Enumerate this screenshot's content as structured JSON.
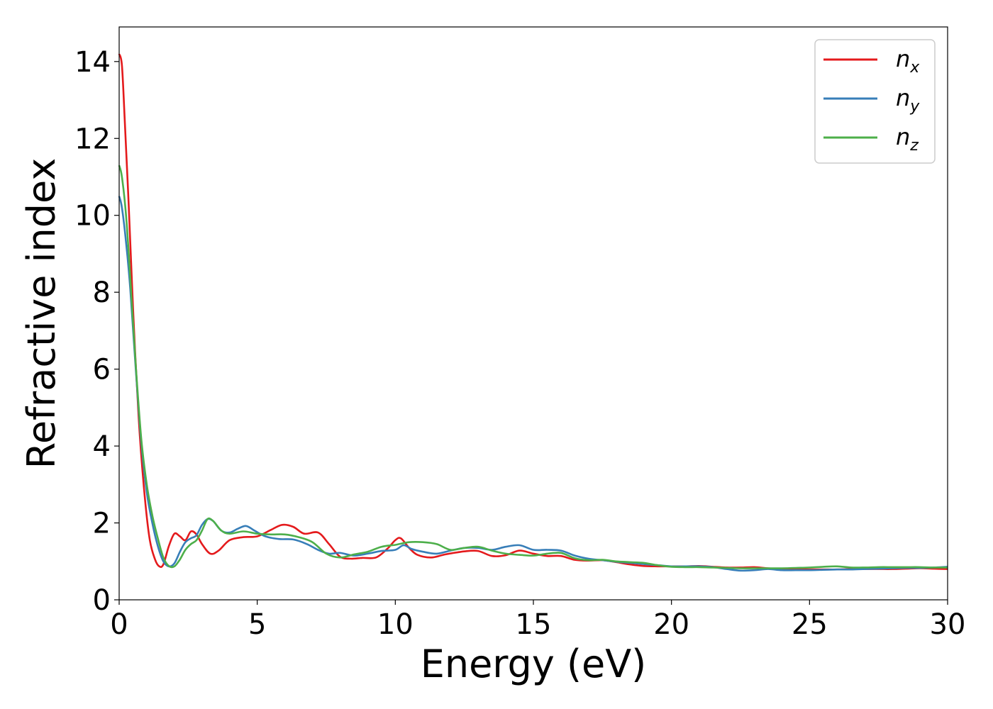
{
  "chart_data": {
    "type": "line",
    "title": "",
    "xlabel": "Energy (eV)",
    "ylabel": "Refractive index",
    "xlim": [
      0,
      30
    ],
    "ylim": [
      0,
      14.9
    ],
    "xticks": [
      0,
      5,
      10,
      15,
      20,
      25,
      30
    ],
    "yticks": [
      0,
      2,
      4,
      6,
      8,
      10,
      12,
      14
    ],
    "grid": false,
    "legend_position": "top-right",
    "series": [
      {
        "name": "n_x",
        "legend_main": "n",
        "legend_sub": "x",
        "color": "#e41a1c",
        "points": [
          [
            0,
            14.2
          ],
          [
            0.1,
            13.9
          ],
          [
            0.2,
            12.5
          ],
          [
            0.35,
            10.2
          ],
          [
            0.5,
            7.6
          ],
          [
            0.7,
            4.8
          ],
          [
            0.9,
            2.9
          ],
          [
            1.1,
            1.6
          ],
          [
            1.3,
            1.05
          ],
          [
            1.45,
            0.87
          ],
          [
            1.6,
            0.92
          ],
          [
            1.8,
            1.4
          ],
          [
            2.0,
            1.72
          ],
          [
            2.2,
            1.65
          ],
          [
            2.4,
            1.55
          ],
          [
            2.6,
            1.78
          ],
          [
            2.8,
            1.7
          ],
          [
            3.0,
            1.45
          ],
          [
            3.3,
            1.2
          ],
          [
            3.6,
            1.28
          ],
          [
            4.0,
            1.55
          ],
          [
            4.5,
            1.63
          ],
          [
            5.0,
            1.65
          ],
          [
            5.5,
            1.82
          ],
          [
            5.9,
            1.95
          ],
          [
            6.3,
            1.9
          ],
          [
            6.7,
            1.72
          ],
          [
            7.2,
            1.75
          ],
          [
            7.6,
            1.45
          ],
          [
            8.0,
            1.12
          ],
          [
            8.4,
            1.07
          ],
          [
            8.8,
            1.09
          ],
          [
            9.3,
            1.1
          ],
          [
            9.7,
            1.32
          ],
          [
            10.0,
            1.55
          ],
          [
            10.2,
            1.6
          ],
          [
            10.5,
            1.35
          ],
          [
            10.8,
            1.17
          ],
          [
            11.3,
            1.1
          ],
          [
            11.8,
            1.18
          ],
          [
            12.5,
            1.26
          ],
          [
            13.0,
            1.27
          ],
          [
            13.5,
            1.14
          ],
          [
            14.0,
            1.16
          ],
          [
            14.5,
            1.28
          ],
          [
            15.0,
            1.2
          ],
          [
            15.5,
            1.14
          ],
          [
            16.0,
            1.14
          ],
          [
            16.5,
            1.04
          ],
          [
            17.0,
            1.02
          ],
          [
            17.5,
            1.03
          ],
          [
            18.0,
            0.98
          ],
          [
            18.5,
            0.92
          ],
          [
            19.0,
            0.88
          ],
          [
            19.5,
            0.87
          ],
          [
            20.0,
            0.87
          ],
          [
            20.5,
            0.87
          ],
          [
            21.0,
            0.88
          ],
          [
            21.5,
            0.86
          ],
          [
            22.0,
            0.84
          ],
          [
            22.5,
            0.84
          ],
          [
            23.0,
            0.85
          ],
          [
            23.5,
            0.82
          ],
          [
            24.0,
            0.8
          ],
          [
            24.5,
            0.79
          ],
          [
            25.0,
            0.79
          ],
          [
            25.5,
            0.79
          ],
          [
            26.0,
            0.79
          ],
          [
            26.5,
            0.8
          ],
          [
            27.0,
            0.8
          ],
          [
            27.5,
            0.8
          ],
          [
            28.0,
            0.8
          ],
          [
            28.5,
            0.81
          ],
          [
            29.0,
            0.82
          ],
          [
            29.5,
            0.81
          ],
          [
            30.0,
            0.8
          ]
        ]
      },
      {
        "name": "n_y",
        "legend_main": "n",
        "legend_sub": "y",
        "color": "#377eb8",
        "points": [
          [
            0,
            10.5
          ],
          [
            0.1,
            10.2
          ],
          [
            0.25,
            9.3
          ],
          [
            0.4,
            8.1
          ],
          [
            0.6,
            6.0
          ],
          [
            0.8,
            4.1
          ],
          [
            1.0,
            2.8
          ],
          [
            1.2,
            2.0
          ],
          [
            1.4,
            1.4
          ],
          [
            1.6,
            1.0
          ],
          [
            1.8,
            0.87
          ],
          [
            2.0,
            0.95
          ],
          [
            2.2,
            1.25
          ],
          [
            2.4,
            1.5
          ],
          [
            2.6,
            1.6
          ],
          [
            2.8,
            1.68
          ],
          [
            3.0,
            1.95
          ],
          [
            3.2,
            2.1
          ],
          [
            3.4,
            2.05
          ],
          [
            3.7,
            1.8
          ],
          [
            4.0,
            1.75
          ],
          [
            4.3,
            1.85
          ],
          [
            4.6,
            1.92
          ],
          [
            4.9,
            1.8
          ],
          [
            5.3,
            1.65
          ],
          [
            5.8,
            1.58
          ],
          [
            6.3,
            1.57
          ],
          [
            6.8,
            1.45
          ],
          [
            7.2,
            1.3
          ],
          [
            7.6,
            1.2
          ],
          [
            8.0,
            1.22
          ],
          [
            8.5,
            1.15
          ],
          [
            9.0,
            1.2
          ],
          [
            9.5,
            1.27
          ],
          [
            10.0,
            1.3
          ],
          [
            10.3,
            1.42
          ],
          [
            10.6,
            1.32
          ],
          [
            11.0,
            1.25
          ],
          [
            11.5,
            1.2
          ],
          [
            12.0,
            1.28
          ],
          [
            12.5,
            1.35
          ],
          [
            13.0,
            1.35
          ],
          [
            13.5,
            1.3
          ],
          [
            14.0,
            1.38
          ],
          [
            14.5,
            1.42
          ],
          [
            15.0,
            1.3
          ],
          [
            15.5,
            1.3
          ],
          [
            16.0,
            1.28
          ],
          [
            16.5,
            1.15
          ],
          [
            17.0,
            1.07
          ],
          [
            17.5,
            1.03
          ],
          [
            18.0,
            0.99
          ],
          [
            18.5,
            0.96
          ],
          [
            19.0,
            0.93
          ],
          [
            19.5,
            0.9
          ],
          [
            20.0,
            0.87
          ],
          [
            20.5,
            0.87
          ],
          [
            21.0,
            0.87
          ],
          [
            21.5,
            0.85
          ],
          [
            22.0,
            0.8
          ],
          [
            22.5,
            0.76
          ],
          [
            23.0,
            0.77
          ],
          [
            23.5,
            0.8
          ],
          [
            24.0,
            0.77
          ],
          [
            24.5,
            0.77
          ],
          [
            25.0,
            0.77
          ],
          [
            25.5,
            0.78
          ],
          [
            26.0,
            0.79
          ],
          [
            26.5,
            0.79
          ],
          [
            27.0,
            0.8
          ],
          [
            27.5,
            0.81
          ],
          [
            28.0,
            0.82
          ],
          [
            28.5,
            0.83
          ],
          [
            29.0,
            0.83
          ],
          [
            29.5,
            0.84
          ],
          [
            30.0,
            0.86
          ]
        ]
      },
      {
        "name": "n_z",
        "legend_main": "n",
        "legend_sub": "z",
        "color": "#4daf4a",
        "points": [
          [
            0,
            11.3
          ],
          [
            0.1,
            11.0
          ],
          [
            0.25,
            10.0
          ],
          [
            0.4,
            8.4
          ],
          [
            0.6,
            6.1
          ],
          [
            0.8,
            4.2
          ],
          [
            1.0,
            3.0
          ],
          [
            1.2,
            2.2
          ],
          [
            1.4,
            1.6
          ],
          [
            1.6,
            1.1
          ],
          [
            1.8,
            0.88
          ],
          [
            2.0,
            0.87
          ],
          [
            2.2,
            1.05
          ],
          [
            2.4,
            1.3
          ],
          [
            2.6,
            1.45
          ],
          [
            2.8,
            1.55
          ],
          [
            3.0,
            1.8
          ],
          [
            3.2,
            2.1
          ],
          [
            3.4,
            2.05
          ],
          [
            3.7,
            1.8
          ],
          [
            4.0,
            1.72
          ],
          [
            4.5,
            1.78
          ],
          [
            5.0,
            1.72
          ],
          [
            5.5,
            1.7
          ],
          [
            6.0,
            1.7
          ],
          [
            6.5,
            1.63
          ],
          [
            7.0,
            1.5
          ],
          [
            7.5,
            1.2
          ],
          [
            8.0,
            1.1
          ],
          [
            8.5,
            1.18
          ],
          [
            9.0,
            1.25
          ],
          [
            9.5,
            1.38
          ],
          [
            10.0,
            1.43
          ],
          [
            10.5,
            1.5
          ],
          [
            11.0,
            1.5
          ],
          [
            11.5,
            1.45
          ],
          [
            12.0,
            1.3
          ],
          [
            12.5,
            1.35
          ],
          [
            13.0,
            1.38
          ],
          [
            13.5,
            1.28
          ],
          [
            14.0,
            1.2
          ],
          [
            14.5,
            1.17
          ],
          [
            15.0,
            1.15
          ],
          [
            15.5,
            1.2
          ],
          [
            16.0,
            1.22
          ],
          [
            16.5,
            1.08
          ],
          [
            17.0,
            1.03
          ],
          [
            17.5,
            1.04
          ],
          [
            18.0,
            1.0
          ],
          [
            18.5,
            0.98
          ],
          [
            19.0,
            0.96
          ],
          [
            19.5,
            0.9
          ],
          [
            20.0,
            0.86
          ],
          [
            20.5,
            0.85
          ],
          [
            21.0,
            0.85
          ],
          [
            21.5,
            0.84
          ],
          [
            22.0,
            0.83
          ],
          [
            22.5,
            0.82
          ],
          [
            23.0,
            0.82
          ],
          [
            23.5,
            0.82
          ],
          [
            24.0,
            0.82
          ],
          [
            24.5,
            0.83
          ],
          [
            25.0,
            0.84
          ],
          [
            25.5,
            0.86
          ],
          [
            26.0,
            0.87
          ],
          [
            26.5,
            0.84
          ],
          [
            27.0,
            0.84
          ],
          [
            27.5,
            0.85
          ],
          [
            28.0,
            0.85
          ],
          [
            28.5,
            0.85
          ],
          [
            29.0,
            0.85
          ],
          [
            29.5,
            0.84
          ],
          [
            30.0,
            0.84
          ]
        ]
      }
    ]
  }
}
